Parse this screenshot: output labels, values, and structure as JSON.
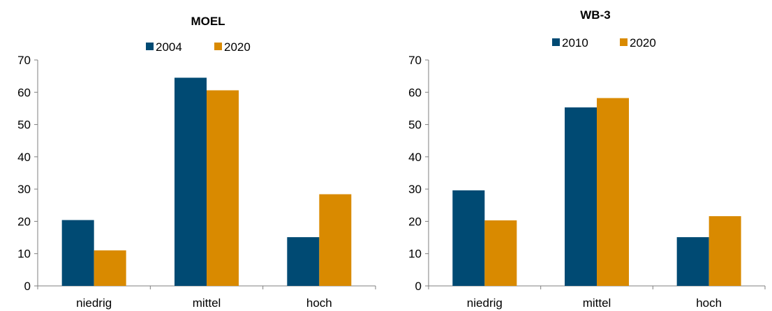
{
  "colors": {
    "series1": "#004a73",
    "series2": "#d98a00"
  },
  "chart_data": [
    {
      "type": "bar",
      "title": "MOEL",
      "categories": [
        "niedrig",
        "mittel",
        "hoch"
      ],
      "series": [
        {
          "name": "2004",
          "values": [
            20.4,
            64.5,
            15.1
          ]
        },
        {
          "name": "2020",
          "values": [
            11.0,
            60.6,
            28.4
          ]
        }
      ],
      "ylim": [
        0,
        70
      ],
      "yticks": [
        "0",
        "10",
        "20",
        "30",
        "40",
        "50",
        "60",
        "70"
      ],
      "xlabel": "",
      "ylabel": "",
      "legend": "top",
      "grid": false
    },
    {
      "type": "bar",
      "title": "WB-3",
      "categories": [
        "niedrig",
        "mittel",
        "hoch"
      ],
      "series": [
        {
          "name": "2010",
          "values": [
            29.6,
            55.3,
            15.1
          ]
        },
        {
          "name": "2020",
          "values": [
            20.3,
            58.2,
            21.6
          ]
        }
      ],
      "ylim": [
        0,
        70
      ],
      "yticks": [
        "0",
        "10",
        "20",
        "30",
        "40",
        "50",
        "60",
        "70"
      ],
      "xlabel": "",
      "ylabel": "",
      "legend": "top",
      "grid": false
    }
  ]
}
